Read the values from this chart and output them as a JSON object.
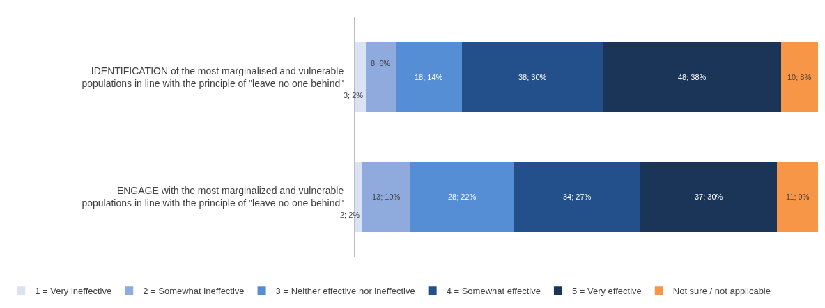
{
  "chart_data": {
    "type": "bar",
    "orientation": "horizontal",
    "stacked": true,
    "categories": [
      "IDENTIFICATION of the most marginalised and vulnerable\npopulations in line with the principle of \"leave no one behind\"",
      "ENGAGE with the most marginalized and vulnerable\npopulations in line with the principle of \"leave no one behind\""
    ],
    "series": [
      {
        "name": "1 = Very ineffective",
        "color": "#dae3f3",
        "values": [
          3,
          2
        ],
        "value_labels": [
          "3; 2%",
          "2; 2%"
        ]
      },
      {
        "name": "2 = Somewhat ineffective",
        "color": "#8faadc",
        "values": [
          8,
          13
        ],
        "value_labels": [
          "8; 6%",
          "13; 10%"
        ]
      },
      {
        "name": "3 = Neither effective nor ineffective",
        "color": "#558ed5",
        "values": [
          18,
          28
        ],
        "value_labels": [
          "18; 14%",
          "28; 22%"
        ]
      },
      {
        "name": "4 = Somewhat effective",
        "color": "#234f8a",
        "values": [
          38,
          34
        ],
        "value_labels": [
          "38; 30%",
          "34; 27%"
        ]
      },
      {
        "name": "5 = Very effective",
        "color": "#1b3559",
        "values": [
          48,
          37
        ],
        "value_labels": [
          "48; 38%",
          "37; 30%"
        ]
      },
      {
        "name": "Not sure / not applicable",
        "color": "#f79646",
        "values": [
          10,
          11
        ],
        "value_labels": [
          "10; 8%",
          "11; 9%"
        ]
      }
    ],
    "xlim": [
      0,
      125
    ],
    "tick_labels": "y",
    "legend": "bottom"
  }
}
